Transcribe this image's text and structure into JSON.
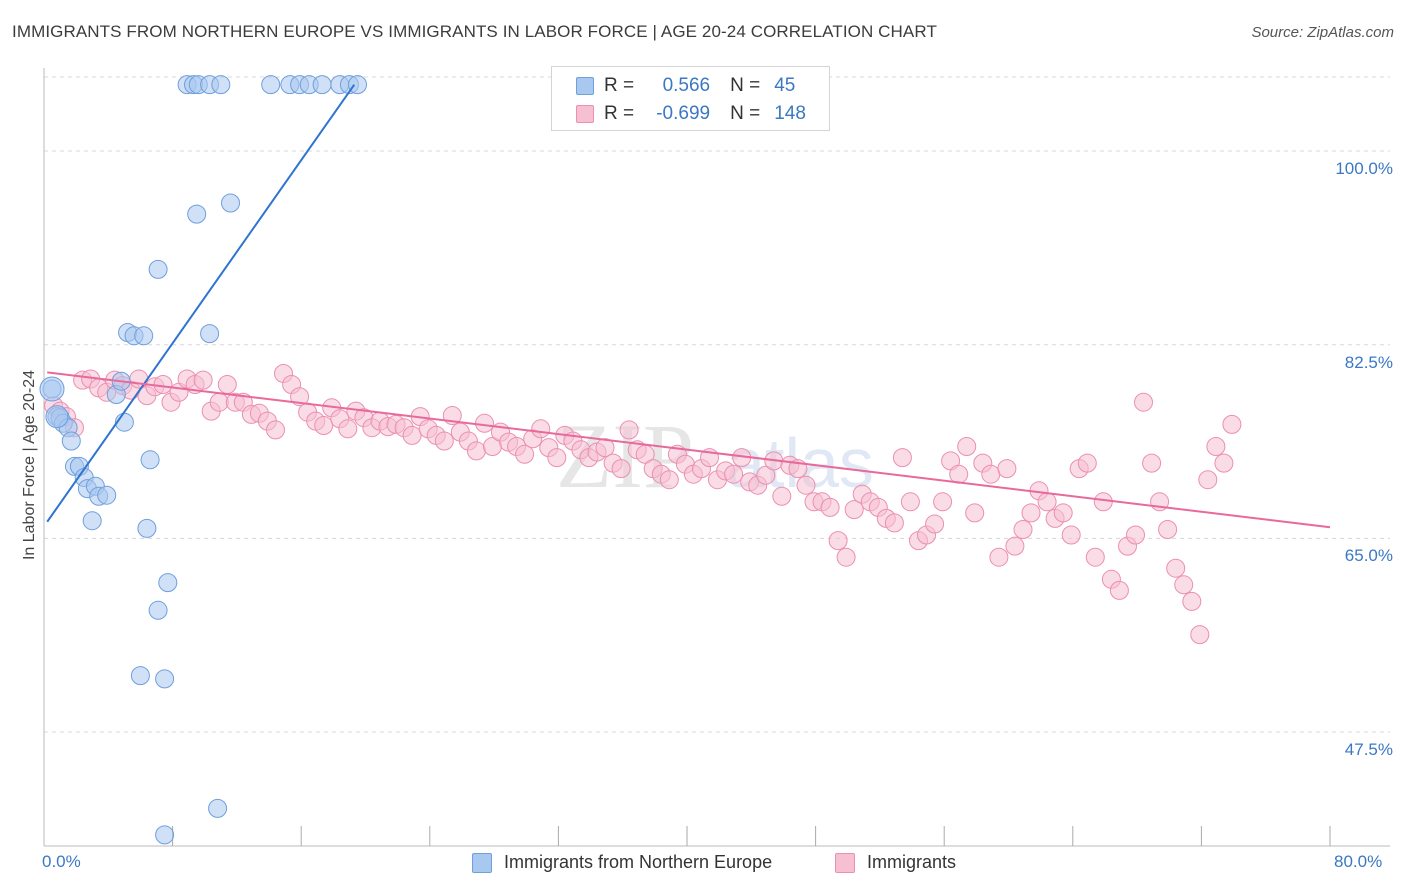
{
  "header": {
    "title": "IMMIGRANTS FROM NORTHERN EUROPE VS IMMIGRANTS IN LABOR FORCE | AGE 20-24 CORRELATION CHART",
    "source": "Source: ZipAtlas.com"
  },
  "watermark": {
    "part1": "ZIP",
    "part2": "atlas"
  },
  "colors": {
    "blue_fill": "#a9c8f0",
    "blue_stroke": "#6f9fdc",
    "blue_line": "#2f74d0",
    "pink_fill": "#f6c0d2",
    "pink_stroke": "#ec8fb0",
    "pink_line": "#e8699a",
    "grid": "#d8d8d8",
    "tick_text": "#3b78c4"
  },
  "legend_stats": {
    "r_label": "R =",
    "n_label": "N =",
    "blue": {
      "r": "0.566",
      "n": "45"
    },
    "pink": {
      "r": "-0.699",
      "n": "148"
    }
  },
  "chart_data": {
    "type": "scatter",
    "title": "IMMIGRANTS FROM NORTHERN EUROPE VS IMMIGRANTS IN LABOR FORCE | AGE 20-24 CORRELATION CHART",
    "xlabel": "",
    "ylabel": "In Labor Force | Age 20-24",
    "xlim": [
      0,
      80
    ],
    "ylim": [
      37.2,
      106.6
    ],
    "x_tick_labels": [
      "0.0%",
      "80.0%"
    ],
    "y_ticks": [
      47.5,
      65.0,
      82.5,
      100.0
    ],
    "y_tick_labels": [
      "47.5%",
      "65.0%",
      "82.5%",
      "100.0%"
    ],
    "x_minor_ticks": [
      8,
      16,
      24,
      32,
      40,
      48,
      56,
      64,
      72,
      80
    ],
    "grid": true,
    "series": [
      {
        "name": "Immigrants from Northern Europe",
        "color": "blue",
        "r": 0.566,
        "n": 45,
        "trend": {
          "x0": 0.2,
          "y0": 66.5,
          "x1": 19.3,
          "y1": 106.0
        },
        "points": [
          [
            0.5,
            78.5
          ],
          [
            0.8,
            76.0
          ],
          [
            1.0,
            75.9
          ],
          [
            1.2,
            75.4
          ],
          [
            1.5,
            75.0
          ],
          [
            1.7,
            73.8
          ],
          [
            1.9,
            71.5
          ],
          [
            2.2,
            71.5
          ],
          [
            2.5,
            70.5
          ],
          [
            2.7,
            69.5
          ],
          [
            3.2,
            69.7
          ],
          [
            3.4,
            68.8
          ],
          [
            3.9,
            68.9
          ],
          [
            3.0,
            66.6
          ],
          [
            4.5,
            78.0
          ],
          [
            4.8,
            79.2
          ],
          [
            5.0,
            75.5
          ],
          [
            5.2,
            83.6
          ],
          [
            5.6,
            83.3
          ],
          [
            6.2,
            83.3
          ],
          [
            6.6,
            72.1
          ],
          [
            6.4,
            65.9
          ],
          [
            7.1,
            89.3
          ],
          [
            7.5,
            38.2
          ],
          [
            7.7,
            61.0
          ],
          [
            6.0,
            52.6
          ],
          [
            7.5,
            52.3
          ],
          [
            7.1,
            58.5
          ],
          [
            8.9,
            106.0
          ],
          [
            9.3,
            106.0
          ],
          [
            9.6,
            106.0
          ],
          [
            10.3,
            106.0
          ],
          [
            11.0,
            106.0
          ],
          [
            9.5,
            94.3
          ],
          [
            11.6,
            95.3
          ],
          [
            10.3,
            83.5
          ],
          [
            10.8,
            40.6
          ],
          [
            14.1,
            106.0
          ],
          [
            15.3,
            106.0
          ],
          [
            15.9,
            106.0
          ],
          [
            16.5,
            106.0
          ],
          [
            18.4,
            106.0
          ],
          [
            19.0,
            106.0
          ],
          [
            19.5,
            106.0
          ],
          [
            17.3,
            106.0
          ]
        ]
      },
      {
        "name": "Immigrants",
        "color": "pink",
        "r": -0.699,
        "n": 148,
        "trend": {
          "x0": 0.2,
          "y0": 80.0,
          "x1": 80.0,
          "y1": 66.0
        },
        "points": [
          [
            0.6,
            77.0
          ],
          [
            1.0,
            76.5
          ],
          [
            1.4,
            76.0
          ],
          [
            1.9,
            75.0
          ],
          [
            2.4,
            79.3
          ],
          [
            2.9,
            79.4
          ],
          [
            3.4,
            78.6
          ],
          [
            3.9,
            78.2
          ],
          [
            4.4,
            79.3
          ],
          [
            4.9,
            78.8
          ],
          [
            5.4,
            78.4
          ],
          [
            5.9,
            79.4
          ],
          [
            6.4,
            77.9
          ],
          [
            6.9,
            78.7
          ],
          [
            7.4,
            78.9
          ],
          [
            7.9,
            77.3
          ],
          [
            8.4,
            78.2
          ],
          [
            8.9,
            79.4
          ],
          [
            9.4,
            78.9
          ],
          [
            9.9,
            79.3
          ],
          [
            10.4,
            76.5
          ],
          [
            10.9,
            77.3
          ],
          [
            11.4,
            78.9
          ],
          [
            11.9,
            77.3
          ],
          [
            12.4,
            77.3
          ],
          [
            12.9,
            76.2
          ],
          [
            13.4,
            76.3
          ],
          [
            13.9,
            75.6
          ],
          [
            14.4,
            74.8
          ],
          [
            14.9,
            79.9
          ],
          [
            15.4,
            78.9
          ],
          [
            15.9,
            77.8
          ],
          [
            16.4,
            76.4
          ],
          [
            16.9,
            75.6
          ],
          [
            17.4,
            75.2
          ],
          [
            17.9,
            76.8
          ],
          [
            18.4,
            75.8
          ],
          [
            18.9,
            74.9
          ],
          [
            19.4,
            76.5
          ],
          [
            19.9,
            75.9
          ],
          [
            20.4,
            75.0
          ],
          [
            20.9,
            75.6
          ],
          [
            21.4,
            75.1
          ],
          [
            21.9,
            75.3
          ],
          [
            22.4,
            75.0
          ],
          [
            22.9,
            74.3
          ],
          [
            23.4,
            76.0
          ],
          [
            23.9,
            74.9
          ],
          [
            24.4,
            74.3
          ],
          [
            24.9,
            73.8
          ],
          [
            25.4,
            76.1
          ],
          [
            25.9,
            74.6
          ],
          [
            26.4,
            73.8
          ],
          [
            26.9,
            72.9
          ],
          [
            27.4,
            75.4
          ],
          [
            27.9,
            73.3
          ],
          [
            28.4,
            74.6
          ],
          [
            28.9,
            73.7
          ],
          [
            29.4,
            73.3
          ],
          [
            29.9,
            72.6
          ],
          [
            30.4,
            74.0
          ],
          [
            30.9,
            74.9
          ],
          [
            31.4,
            73.2
          ],
          [
            31.9,
            72.3
          ],
          [
            32.4,
            74.3
          ],
          [
            32.9,
            73.8
          ],
          [
            33.4,
            73.0
          ],
          [
            33.9,
            72.3
          ],
          [
            34.4,
            72.8
          ],
          [
            34.9,
            73.2
          ],
          [
            35.4,
            71.8
          ],
          [
            35.9,
            71.3
          ],
          [
            36.4,
            74.8
          ],
          [
            36.9,
            73.0
          ],
          [
            37.4,
            72.6
          ],
          [
            37.9,
            71.3
          ],
          [
            38.4,
            70.8
          ],
          [
            38.9,
            70.3
          ],
          [
            39.4,
            72.6
          ],
          [
            39.9,
            71.7
          ],
          [
            40.4,
            70.8
          ],
          [
            40.9,
            71.3
          ],
          [
            41.4,
            72.3
          ],
          [
            41.9,
            70.3
          ],
          [
            42.4,
            71.1
          ],
          [
            42.9,
            70.8
          ],
          [
            43.4,
            72.3
          ],
          [
            43.9,
            70.1
          ],
          [
            44.4,
            69.8
          ],
          [
            44.9,
            70.7
          ],
          [
            45.4,
            72.0
          ],
          [
            45.9,
            68.8
          ],
          [
            46.4,
            71.6
          ],
          [
            46.9,
            71.3
          ],
          [
            47.4,
            69.8
          ],
          [
            47.9,
            68.3
          ],
          [
            48.4,
            68.3
          ],
          [
            48.9,
            67.8
          ],
          [
            49.4,
            64.8
          ],
          [
            49.9,
            63.3
          ],
          [
            50.4,
            67.6
          ],
          [
            50.9,
            69.0
          ],
          [
            51.4,
            68.3
          ],
          [
            51.9,
            67.8
          ],
          [
            52.4,
            66.8
          ],
          [
            52.9,
            66.4
          ],
          [
            53.4,
            72.3
          ],
          [
            53.9,
            68.3
          ],
          [
            54.4,
            64.8
          ],
          [
            54.9,
            65.3
          ],
          [
            55.4,
            66.3
          ],
          [
            55.9,
            68.3
          ],
          [
            56.4,
            72.0
          ],
          [
            56.9,
            70.8
          ],
          [
            57.4,
            73.3
          ],
          [
            57.9,
            67.3
          ],
          [
            58.4,
            71.8
          ],
          [
            58.9,
            70.8
          ],
          [
            59.4,
            63.3
          ],
          [
            59.9,
            71.3
          ],
          [
            60.4,
            64.3
          ],
          [
            60.9,
            65.8
          ],
          [
            61.4,
            67.3
          ],
          [
            61.9,
            69.3
          ],
          [
            62.4,
            68.3
          ],
          [
            62.9,
            66.8
          ],
          [
            63.4,
            67.3
          ],
          [
            63.9,
            65.3
          ],
          [
            64.4,
            71.3
          ],
          [
            64.9,
            71.8
          ],
          [
            65.4,
            63.3
          ],
          [
            65.9,
            68.3
          ],
          [
            66.4,
            61.3
          ],
          [
            66.9,
            60.3
          ],
          [
            67.4,
            64.3
          ],
          [
            67.9,
            65.3
          ],
          [
            68.4,
            77.3
          ],
          [
            68.9,
            71.8
          ],
          [
            69.4,
            68.3
          ],
          [
            69.9,
            65.8
          ],
          [
            70.4,
            62.3
          ],
          [
            70.9,
            60.8
          ],
          [
            71.4,
            59.3
          ],
          [
            71.9,
            56.3
          ],
          [
            72.4,
            70.3
          ],
          [
            72.9,
            73.3
          ],
          [
            73.4,
            71.8
          ],
          [
            73.9,
            75.3
          ]
        ]
      }
    ]
  },
  "bottom_legend": {
    "blue_label": "Immigrants from Northern Europe",
    "pink_label": "Immigrants"
  }
}
